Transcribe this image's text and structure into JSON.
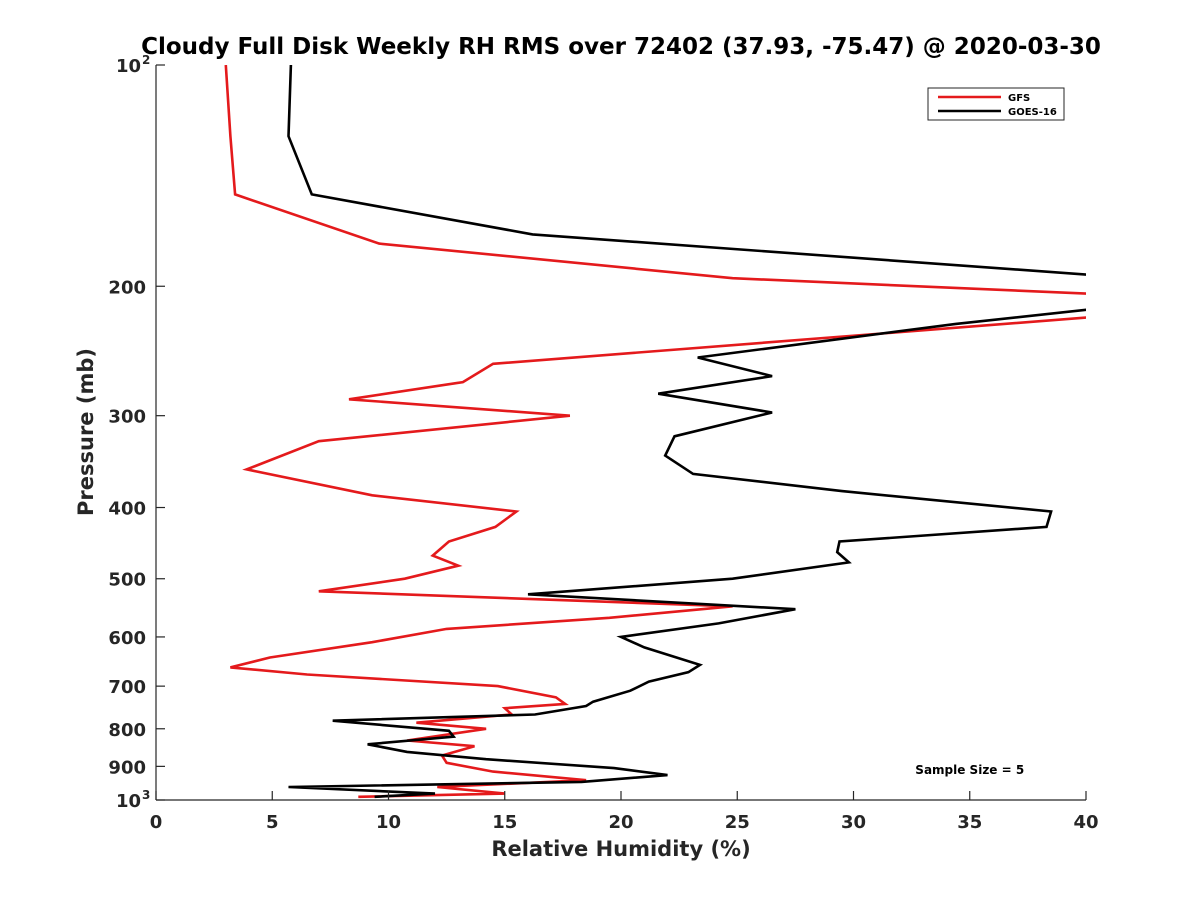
{
  "chart_data": {
    "type": "line",
    "title": "Cloudy Full Disk Weekly RH RMS over 72402 (37.93, -75.47) @ 2020-03-30",
    "xlabel": "Relative Humidity (%)",
    "ylabel": "Pressure (mb)",
    "xlim": [
      0,
      40
    ],
    "ylim": [
      100,
      1000
    ],
    "y_scale": "log",
    "y_reversed": true,
    "x_ticks": [
      {
        "value": 0,
        "label": "0"
      },
      {
        "value": 5,
        "label": "5"
      },
      {
        "value": 10,
        "label": "10"
      },
      {
        "value": 15,
        "label": "15"
      },
      {
        "value": 20,
        "label": "20"
      },
      {
        "value": 25,
        "label": "25"
      },
      {
        "value": 30,
        "label": "30"
      },
      {
        "value": 35,
        "label": "35"
      },
      {
        "value": 40,
        "label": "40"
      }
    ],
    "y_ticks": [
      {
        "value": 100,
        "label": "10",
        "sup": "2"
      },
      {
        "value": 200,
        "label": "200",
        "sup": ""
      },
      {
        "value": 300,
        "label": "300",
        "sup": ""
      },
      {
        "value": 400,
        "label": "400",
        "sup": ""
      },
      {
        "value": 500,
        "label": "500",
        "sup": ""
      },
      {
        "value": 600,
        "label": "600",
        "sup": ""
      },
      {
        "value": 700,
        "label": "700",
        "sup": ""
      },
      {
        "value": 800,
        "label": "800",
        "sup": ""
      },
      {
        "value": 900,
        "label": "900",
        "sup": ""
      },
      {
        "value": 1000,
        "label": "10",
        "sup": "3"
      }
    ],
    "grid": false,
    "legend_position": "top-right",
    "series": [
      {
        "name": "GFS",
        "color": "#e41a1c",
        "points": [
          [
            3.0,
            100
          ],
          [
            3.2,
            125
          ],
          [
            3.4,
            150
          ],
          [
            9.6,
            175
          ],
          [
            24.8,
            195
          ],
          [
            40.5,
            205
          ],
          [
            40.5,
            220
          ],
          [
            14.5,
            255
          ],
          [
            13.2,
            270
          ],
          [
            8.3,
            285
          ],
          [
            17.8,
            300
          ],
          [
            7.0,
            325
          ],
          [
            3.9,
            355
          ],
          [
            9.3,
            385
          ],
          [
            15.5,
            405
          ],
          [
            14.6,
            425
          ],
          [
            12.6,
            445
          ],
          [
            11.9,
            465
          ],
          [
            13.0,
            480
          ],
          [
            10.7,
            500
          ],
          [
            7.0,
            520
          ],
          [
            24.8,
            545
          ],
          [
            19.5,
            565
          ],
          [
            12.5,
            585
          ],
          [
            9.3,
            610
          ],
          [
            4.9,
            640
          ],
          [
            3.2,
            660
          ],
          [
            6.5,
            675
          ],
          [
            14.7,
            700
          ],
          [
            17.2,
            725
          ],
          [
            17.6,
            740
          ],
          [
            15.0,
            750
          ],
          [
            15.3,
            765
          ],
          [
            11.2,
            785
          ],
          [
            14.2,
            800
          ],
          [
            10.8,
            830
          ],
          [
            13.7,
            845
          ],
          [
            12.3,
            870
          ],
          [
            12.5,
            890
          ],
          [
            14.5,
            915
          ],
          [
            18.5,
            940
          ],
          [
            12.1,
            960
          ],
          [
            15.0,
            980
          ],
          [
            8.7,
            990
          ]
        ]
      },
      {
        "name": "GOES-16",
        "color": "#000000",
        "points": [
          [
            5.8,
            100
          ],
          [
            5.7,
            125
          ],
          [
            6.7,
            150
          ],
          [
            16.2,
            170
          ],
          [
            40.2,
            193
          ],
          [
            40.2,
            215
          ],
          [
            34.4,
            225
          ],
          [
            23.3,
            250
          ],
          [
            26.5,
            265
          ],
          [
            21.6,
            280
          ],
          [
            26.5,
            297
          ],
          [
            22.3,
            320
          ],
          [
            21.9,
            340
          ],
          [
            23.1,
            360
          ],
          [
            29.5,
            380
          ],
          [
            38.5,
            405
          ],
          [
            38.3,
            425
          ],
          [
            29.4,
            445
          ],
          [
            29.3,
            460
          ],
          [
            29.8,
            475
          ],
          [
            24.8,
            500
          ],
          [
            16.0,
            525
          ],
          [
            27.5,
            550
          ],
          [
            24.2,
            575
          ],
          [
            20.0,
            600
          ],
          [
            21.0,
            620
          ],
          [
            23.4,
            655
          ],
          [
            22.9,
            670
          ],
          [
            21.2,
            690
          ],
          [
            20.4,
            710
          ],
          [
            18.8,
            735
          ],
          [
            18.5,
            745
          ],
          [
            16.3,
            765
          ],
          [
            7.6,
            780
          ],
          [
            12.6,
            805
          ],
          [
            12.8,
            820
          ],
          [
            9.1,
            840
          ],
          [
            10.8,
            860
          ],
          [
            14.2,
            880
          ],
          [
            19.7,
            905
          ],
          [
            22.0,
            925
          ],
          [
            18.3,
            945
          ],
          [
            5.7,
            960
          ],
          [
            12.0,
            980
          ],
          [
            9.4,
            990
          ]
        ]
      }
    ],
    "annotations": [
      {
        "text": "Sample Size = 5",
        "x": 35,
        "p": 910
      }
    ]
  }
}
